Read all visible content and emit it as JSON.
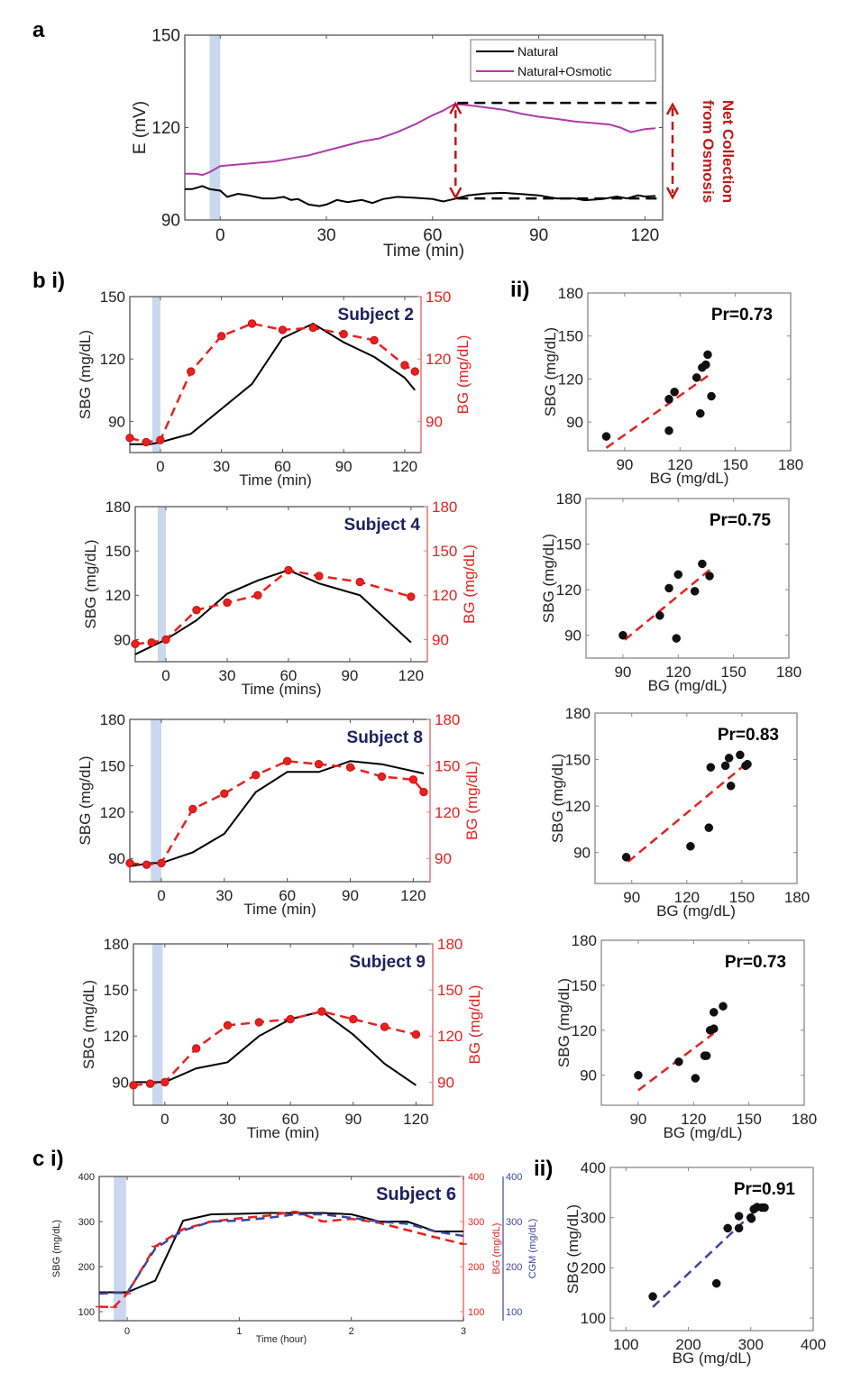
{
  "panel_labels": {
    "a": "a",
    "b_i": "b i)",
    "b_ii": "ii)",
    "c_i": "c i)",
    "c_ii": "ii)"
  },
  "colors": {
    "natural": "#000000",
    "osmotic": "#b03aa8",
    "bg": "#e8211f",
    "cgm": "#3a46a0",
    "subject": "#1d2060",
    "shade": "#c9d8f0",
    "annotation": "#c01818"
  },
  "chart_data": [
    {
      "id": "a",
      "type": "line",
      "title": "",
      "xlabel": "Time (min)",
      "ylabel": "E (mV)",
      "xlim": [
        -10,
        125
      ],
      "ylim": [
        90,
        150
      ],
      "xticks": [
        0,
        30,
        60,
        90,
        120
      ],
      "yticks": [
        90,
        120,
        150
      ],
      "shade": [
        -3,
        0
      ],
      "legend": {
        "placement": "top-right",
        "entries": [
          "Natural",
          "Natural+Osmotic"
        ]
      },
      "annotation": {
        "text_line1": "Net Collection",
        "text_line2": "from Osmosis",
        "x": 67,
        "y_top": 128,
        "y_bottom": 97
      },
      "series": [
        {
          "name": "Natural",
          "x": [
            -10,
            -8,
            -5,
            -3,
            0,
            2,
            5,
            8,
            12,
            15,
            18,
            20,
            22,
            25,
            28,
            30,
            33,
            36,
            40,
            43,
            46,
            50,
            55,
            60,
            63,
            66,
            70,
            75,
            80,
            85,
            90,
            95,
            100,
            103,
            108,
            112,
            115,
            118,
            120,
            123
          ],
          "y": [
            100,
            100,
            101,
            100,
            99.5,
            97.5,
            98.5,
            98,
            97,
            97,
            97.5,
            96.5,
            96.8,
            95,
            94.5,
            95,
            96.5,
            95.8,
            96.5,
            95.5,
            96.8,
            97.5,
            97.2,
            96.8,
            96,
            96.8,
            98,
            98.6,
            98.8,
            98.4,
            98,
            97,
            97,
            96.4,
            96.8,
            97.6,
            97,
            98,
            97.6,
            97.8
          ]
        },
        {
          "name": "Natural+Osmotic",
          "x": [
            -10,
            -7,
            -5,
            -3,
            0,
            5,
            10,
            15,
            20,
            25,
            30,
            35,
            40,
            45,
            50,
            55,
            60,
            63,
            66,
            68,
            72,
            80,
            85,
            90,
            95,
            100,
            105,
            110,
            113,
            116,
            120,
            123
          ],
          "y": [
            105,
            105,
            104.6,
            105.5,
            107.5,
            108,
            108.5,
            109,
            110,
            111,
            112.5,
            114,
            115.5,
            116.5,
            118.5,
            121,
            124,
            125.5,
            127.5,
            127.5,
            127,
            125.8,
            124.5,
            123.5,
            122.8,
            122,
            121.5,
            121,
            120,
            118.5,
            119.5,
            119.8
          ]
        }
      ]
    },
    {
      "id": "b2",
      "type": "line",
      "subject": "Subject 2",
      "xlabel": "Time (min)",
      "ylabel": "SBG (mg/dL)",
      "ylabel_right": "BG (mg/dL)",
      "xlim": [
        -15,
        128
      ],
      "ylim": [
        75,
        150
      ],
      "xticks": [
        0,
        30,
        60,
        90,
        120
      ],
      "yticks": [
        90,
        120,
        150
      ],
      "shade": [
        -4,
        0
      ],
      "series": [
        {
          "name": "SBG",
          "x": [
            -15,
            -5,
            0,
            15,
            30,
            45,
            60,
            75,
            90,
            105,
            120,
            125
          ],
          "y": [
            79,
            79,
            80,
            84,
            96,
            108,
            130,
            137,
            128,
            121,
            111,
            105
          ]
        },
        {
          "name": "BG",
          "x": [
            -15,
            -7,
            0,
            15,
            30,
            45,
            60,
            75,
            90,
            105,
            120,
            125
          ],
          "y": [
            82,
            80,
            81,
            114,
            131,
            137,
            134,
            135,
            132,
            129,
            117,
            114
          ]
        }
      ]
    },
    {
      "id": "b2_corr",
      "type": "scatter",
      "xlabel": "BG (mg/dL)",
      "ylabel": "SBG (mg/dL)",
      "xlim": [
        70,
        180
      ],
      "ylim": [
        70,
        180
      ],
      "xticks": [
        90,
        120,
        150,
        180
      ],
      "yticks": [
        90,
        120,
        150,
        180
      ],
      "pr_label": "Pr=0.73",
      "points": [
        [
          80,
          80
        ],
        [
          114,
          84
        ],
        [
          114,
          106
        ],
        [
          117,
          111
        ],
        [
          129,
          121
        ],
        [
          131,
          96
        ],
        [
          132,
          128
        ],
        [
          134,
          130
        ],
        [
          135,
          137
        ],
        [
          137,
          108
        ]
      ],
      "fit": [
        [
          80,
          72
        ],
        [
          137,
          124
        ]
      ]
    },
    {
      "id": "b4",
      "type": "line",
      "subject": "Subject 4",
      "xlabel": "Time (mins)",
      "ylabel": "SBG (mg/dL)",
      "ylabel_right": "BG (mg/dL)",
      "xlim": [
        -15,
        128
      ],
      "ylim": [
        75,
        180
      ],
      "xticks": [
        0,
        30,
        60,
        90,
        120
      ],
      "yticks": [
        90,
        120,
        150,
        180
      ],
      "shade": [
        -4,
        0
      ],
      "series": [
        {
          "name": "SBG",
          "x": [
            -15,
            0,
            15,
            30,
            45,
            60,
            75,
            95,
            120
          ],
          "y": [
            80,
            90,
            103,
            121,
            130,
            137,
            128,
            120,
            88
          ]
        },
        {
          "name": "BG",
          "x": [
            -15,
            -7,
            0,
            15,
            30,
            45,
            60,
            75,
            95,
            120
          ],
          "y": [
            87,
            88,
            90,
            110,
            115,
            120,
            137,
            133,
            129,
            119
          ]
        }
      ]
    },
    {
      "id": "b4_corr",
      "type": "scatter",
      "xlabel": "BG (mg/dL)",
      "ylabel": "SBG (mg/dL)",
      "xlim": [
        70,
        180
      ],
      "ylim": [
        75,
        180
      ],
      "xticks": [
        90,
        120,
        150,
        180
      ],
      "yticks": [
        90,
        120,
        150,
        180
      ],
      "pr_label": "Pr=0.75",
      "points": [
        [
          90,
          90
        ],
        [
          110,
          103
        ],
        [
          115,
          121
        ],
        [
          119,
          88
        ],
        [
          120,
          130
        ],
        [
          129,
          119
        ],
        [
          133,
          137
        ],
        [
          137,
          129
        ]
      ],
      "fit": [
        [
          91,
          87
        ],
        [
          137,
          133
        ]
      ]
    },
    {
      "id": "b8",
      "type": "line",
      "subject": "Subject 8",
      "xlabel": "Time (min)",
      "ylabel": "SBG (mg/dL)",
      "ylabel_right": "BG (mg/dL)",
      "xlim": [
        -15,
        128
      ],
      "ylim": [
        75,
        180
      ],
      "xticks": [
        0,
        30,
        60,
        90,
        120
      ],
      "yticks": [
        90,
        120,
        150,
        180
      ],
      "shade": [
        -5,
        0
      ],
      "series": [
        {
          "name": "SBG",
          "x": [
            -15,
            -5,
            0,
            15,
            30,
            45,
            60,
            75,
            90,
            105,
            125
          ],
          "y": [
            85,
            87,
            87,
            94,
            106,
            133,
            146,
            146,
            153,
            151,
            145
          ]
        },
        {
          "name": "BG",
          "x": [
            -15,
            -7,
            0,
            15,
            30,
            45,
            60,
            75,
            90,
            105,
            120,
            125
          ],
          "y": [
            87,
            86,
            87,
            122,
            132,
            144,
            153,
            151,
            149,
            143,
            141,
            133
          ]
        }
      ]
    },
    {
      "id": "b8_corr",
      "type": "scatter",
      "xlabel": "BG (mg/dL)",
      "ylabel": "SBG (mg/dL)",
      "xlim": [
        70,
        180
      ],
      "ylim": [
        70,
        180
      ],
      "xticks": [
        90,
        120,
        150,
        180
      ],
      "yticks": [
        90,
        120,
        150,
        180
      ],
      "pr_label": "Pr=0.83",
      "points": [
        [
          87,
          87
        ],
        [
          122,
          94
        ],
        [
          132,
          106
        ],
        [
          133,
          145
        ],
        [
          141,
          146
        ],
        [
          143,
          151
        ],
        [
          144,
          133
        ],
        [
          149,
          153
        ],
        [
          152,
          146
        ],
        [
          153,
          147
        ]
      ],
      "fit": [
        [
          88,
          84
        ],
        [
          152,
          147
        ]
      ]
    },
    {
      "id": "b9",
      "type": "line",
      "subject": "Subject 9",
      "xlabel": "Time (min)",
      "ylabel": "SBG (mg/dL)",
      "ylabel_right": "BG (mg/dL)",
      "xlim": [
        -15,
        128
      ],
      "ylim": [
        75,
        180
      ],
      "xticks": [
        0,
        30,
        60,
        90,
        120
      ],
      "yticks": [
        90,
        120,
        150,
        180
      ],
      "shade": [
        -6,
        -1
      ],
      "series": [
        {
          "name": "SBG",
          "x": [
            -15,
            -5,
            0,
            15,
            30,
            45,
            60,
            75,
            90,
            105,
            120
          ],
          "y": [
            90,
            90,
            90,
            99,
            103,
            120,
            131,
            136,
            121,
            102,
            88
          ]
        },
        {
          "name": "BG",
          "x": [
            -15,
            -7,
            0,
            15,
            30,
            45,
            60,
            75,
            90,
            105,
            120
          ],
          "y": [
            88,
            89,
            90,
            112,
            127,
            129,
            131,
            136,
            131,
            126,
            121
          ]
        }
      ]
    },
    {
      "id": "b9_corr",
      "type": "scatter",
      "xlabel": "BG (mg/dL)",
      "ylabel": "SBG (mg/dL)",
      "xlim": [
        70,
        180
      ],
      "ylim": [
        70,
        180
      ],
      "xticks": [
        90,
        120,
        150,
        180
      ],
      "yticks": [
        90,
        120,
        150,
        180
      ],
      "pr_label": "Pr=0.73",
      "points": [
        [
          90,
          90
        ],
        [
          112,
          99
        ],
        [
          121,
          88
        ],
        [
          126,
          103
        ],
        [
          127,
          103
        ],
        [
          129,
          120
        ],
        [
          131,
          121
        ],
        [
          131,
          132
        ],
        [
          136,
          136
        ]
      ],
      "fit": [
        [
          90,
          80
        ],
        [
          131,
          118
        ]
      ]
    },
    {
      "id": "c6",
      "type": "line",
      "subject": "Subject 6",
      "xlabel": "Time (hour)",
      "ylabel": "SBG (mg/dL)",
      "ylabel_right": "BG (mg/dL)",
      "ylabel_right2": "CGM (mg/dL)",
      "xlim": [
        -0.25,
        3
      ],
      "ylim": [
        80,
        400
      ],
      "xticks": [
        0,
        1,
        2,
        3
      ],
      "yticks": [
        100,
        200,
        300,
        400
      ],
      "shade": [
        -0.12,
        -0.01
      ],
      "series": [
        {
          "name": "SBG",
          "x": [
            -0.25,
            -0.1,
            0,
            0.25,
            0.5,
            0.75,
            1,
            1.25,
            1.5,
            1.75,
            2,
            2.25,
            2.5,
            2.75,
            3
          ],
          "y": [
            143,
            143,
            143,
            169,
            302,
            316,
            317,
            319,
            319,
            319,
            316,
            300,
            300,
            278,
            278
          ]
        },
        {
          "name": "BG",
          "x": [
            -0.25,
            -0.12,
            0,
            0.25,
            0.5,
            0.75,
            1,
            1.25,
            1.5,
            1.75,
            2,
            2.25,
            2.5,
            2.75,
            3
          ],
          "y": [
            111,
            110,
            140,
            245,
            283,
            300,
            307,
            313,
            322,
            300,
            306,
            297,
            281,
            265,
            250
          ]
        },
        {
          "name": "CGM",
          "x": [
            -0.25,
            -0.1,
            0,
            0.25,
            0.5,
            0.75,
            1,
            1.25,
            1.5,
            1.75,
            2,
            2.25,
            2.5,
            2.75,
            3
          ],
          "y": [
            140,
            142,
            142,
            240,
            280,
            300,
            302,
            308,
            316,
            316,
            308,
            300,
            295,
            278,
            268
          ]
        }
      ]
    },
    {
      "id": "c6_corr",
      "type": "scatter",
      "xlabel": "BG (mg/dL)",
      "ylabel": "SBG (mg/dL)",
      "xlim": [
        75,
        400
      ],
      "ylim": [
        75,
        400
      ],
      "xticks": [
        100,
        200,
        300,
        400
      ],
      "yticks": [
        100,
        200,
        300,
        400
      ],
      "pr_label": "Pr=0.91",
      "points": [
        [
          143,
          143
        ],
        [
          245,
          169
        ],
        [
          263,
          279
        ],
        [
          281,
          279
        ],
        [
          281,
          303
        ],
        [
          300,
          300
        ],
        [
          301,
          298
        ],
        [
          305,
          317
        ],
        [
          310,
          321
        ],
        [
          318,
          320
        ],
        [
          322,
          320
        ]
      ],
      "fit": [
        [
          143,
          122
        ],
        [
          315,
          323
        ]
      ]
    }
  ]
}
